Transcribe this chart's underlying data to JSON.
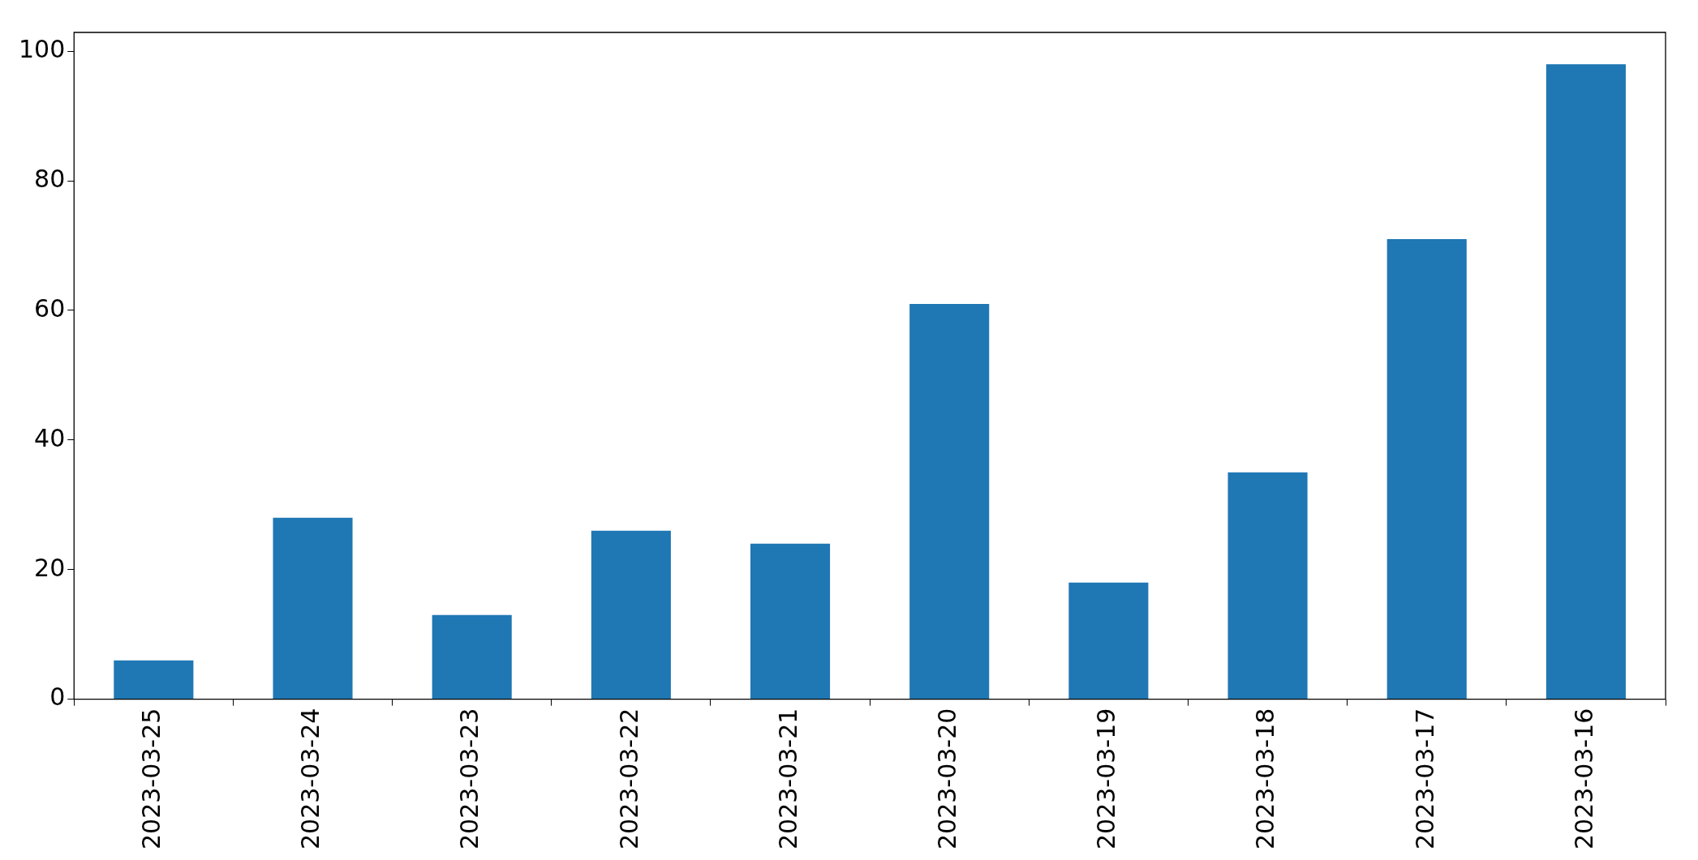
{
  "chart_data": {
    "type": "bar",
    "categories": [
      "2023-03-25",
      "2023-03-24",
      "2023-03-23",
      "2023-03-22",
      "2023-03-21",
      "2023-03-20",
      "2023-03-19",
      "2023-03-18",
      "2023-03-17",
      "2023-03-16"
    ],
    "values": [
      6,
      28,
      13,
      26,
      24,
      61,
      18,
      35,
      71,
      98
    ],
    "color": "#1f77b4",
    "ylim": [
      0,
      102.9
    ],
    "yticks": [
      0,
      20,
      40,
      60,
      80,
      100
    ],
    "grid": false,
    "legend": false
  }
}
